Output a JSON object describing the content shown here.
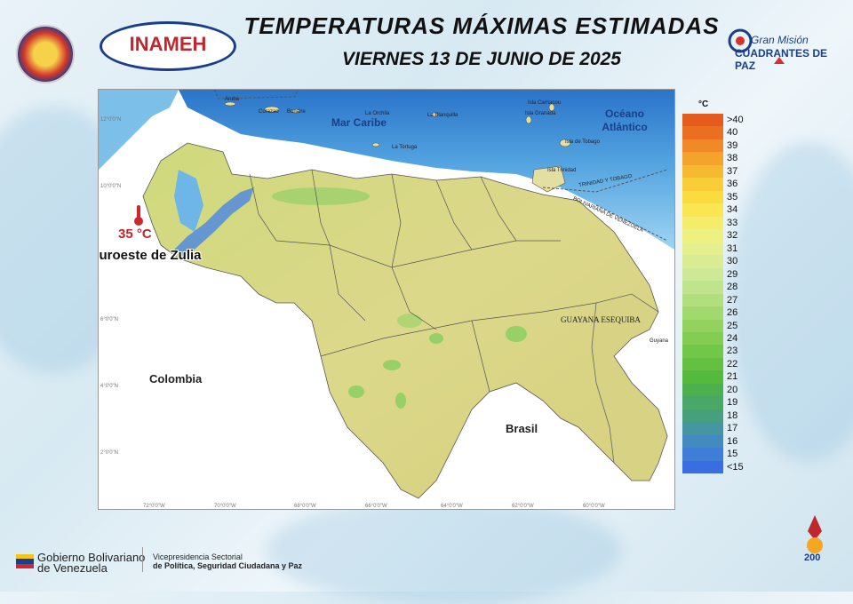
{
  "header": {
    "title": "TEMPERATURAS MÁXIMAS ESTIMADAS",
    "date": "VIERNES 13 DE JUNIO DE 2025",
    "inameh_logo": "INAMEH",
    "gm_logo_line1": "Gran Misión",
    "gm_logo_line2": "CUADRANTES DE PAZ"
  },
  "map": {
    "sea_label": "Mar Caribe",
    "ocean_label": "Océano Atlántico",
    "country_colombia": "Colombia",
    "country_brasil": "Brasil",
    "region_guayana": "GUAYANA ESEQUIBA",
    "trinidad_border": "TRINIDAD Y TOBAGO",
    "venezuela_border": "BOLIVARIANA DE VENEZUELA",
    "guyana_small": "Guyana",
    "highlight_value": "35 °C",
    "highlight_place": "Suroeste de Zulia",
    "islands": [
      "Aruba",
      "Curazao",
      "Bonaire",
      "La Orchila",
      "Isla Granada",
      "Isla Carriacou",
      "Isla de Tobago",
      "Isla Trinidad",
      "La Tortuga",
      "La Blanquilla"
    ],
    "colors": {
      "sea_deep": "#2a74c9",
      "sea_shallow": "#8cc9ee",
      "land": "#d8d884",
      "highlands": "#5a8fd8",
      "green": "#8fcf63"
    }
  },
  "legend": {
    "unit": "°C",
    "items": [
      {
        "label": ">40",
        "color": "#e45b1e"
      },
      {
        "label": "40",
        "color": "#ea7020"
      },
      {
        "label": "39",
        "color": "#f08a26"
      },
      {
        "label": "38",
        "color": "#f4a32c"
      },
      {
        "label": "37",
        "color": "#f6b932"
      },
      {
        "label": "36",
        "color": "#f8cd38"
      },
      {
        "label": "35",
        "color": "#f9dc40"
      },
      {
        "label": "34",
        "color": "#fae653"
      },
      {
        "label": "33",
        "color": "#f6ec6b"
      },
      {
        "label": "32",
        "color": "#eef07f"
      },
      {
        "label": "31",
        "color": "#e4ef8e"
      },
      {
        "label": "30",
        "color": "#d9ec93"
      },
      {
        "label": "29",
        "color": "#cde996"
      },
      {
        "label": "28",
        "color": "#bfe48c"
      },
      {
        "label": "27",
        "color": "#b2df7e"
      },
      {
        "label": "26",
        "color": "#a2d96e"
      },
      {
        "label": "25",
        "color": "#92d35f"
      },
      {
        "label": "24",
        "color": "#82cd52"
      },
      {
        "label": "23",
        "color": "#72c748"
      },
      {
        "label": "22",
        "color": "#63c040"
      },
      {
        "label": "21",
        "color": "#55ba3c"
      },
      {
        "label": "20",
        "color": "#4cb14d"
      },
      {
        "label": "19",
        "color": "#49a865"
      },
      {
        "label": "18",
        "color": "#47a07d"
      },
      {
        "label": "17",
        "color": "#4596a0"
      },
      {
        "label": "16",
        "color": "#428ac0"
      },
      {
        "label": "15",
        "color": "#3f7dd6"
      },
      {
        "label": "<15",
        "color": "#3a6ee0"
      }
    ]
  },
  "footer": {
    "gov_line1": "Gobierno Bolivariano",
    "gov_line2": "de Venezuela",
    "vp_line1": "Vicepresidencia Sectorial",
    "vp_line2": "de Política, Seguridad Ciudadana y Paz",
    "badge_text": "200"
  }
}
